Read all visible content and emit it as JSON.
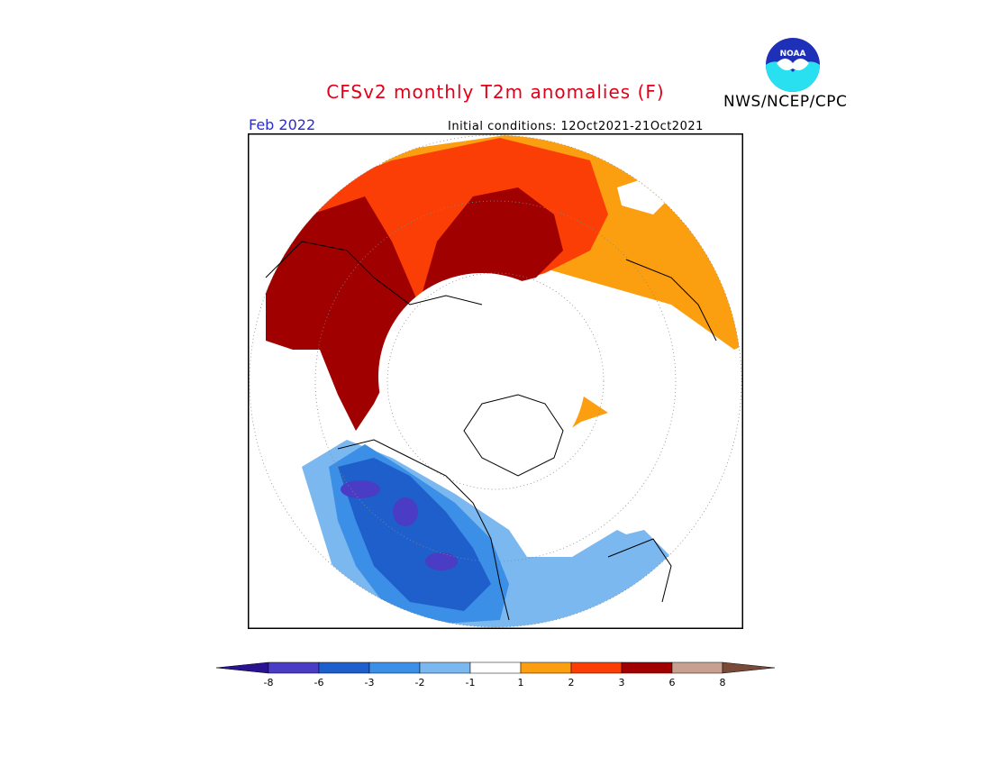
{
  "header": {
    "title": "CFSv2 monthly T2m anomalies (F)",
    "valid_month": "Feb 2022",
    "initial_conditions": "Initial conditions: 12Oct2021-21Oct2021",
    "agency": "NWS/NCEP/CPC",
    "logo_text": "NOAA"
  },
  "colorbar": {
    "ticks": [
      "-8",
      "-6",
      "-3",
      "-2",
      "-1",
      "1",
      "2",
      "3",
      "6",
      "8"
    ],
    "colors": {
      "below_-8": "#2a1390",
      "-8_-6": "#4a3cc4",
      "-6_-3": "#1e5fcc",
      "-3_-2": "#3c8fe6",
      "-2_-1": "#7cb8f0",
      "-1_1": "#ffffff",
      "1_2": "#fb9e10",
      "2_3": "#fb3e05",
      "3_6": "#a00000",
      "6_8": "#c8a090",
      "above_8": "#7a4a38"
    }
  },
  "map": {
    "projection": "polar-stereographic",
    "warm_region": "Eurasia / Russia, Europe",
    "cool_region": "North America / Canada"
  }
}
